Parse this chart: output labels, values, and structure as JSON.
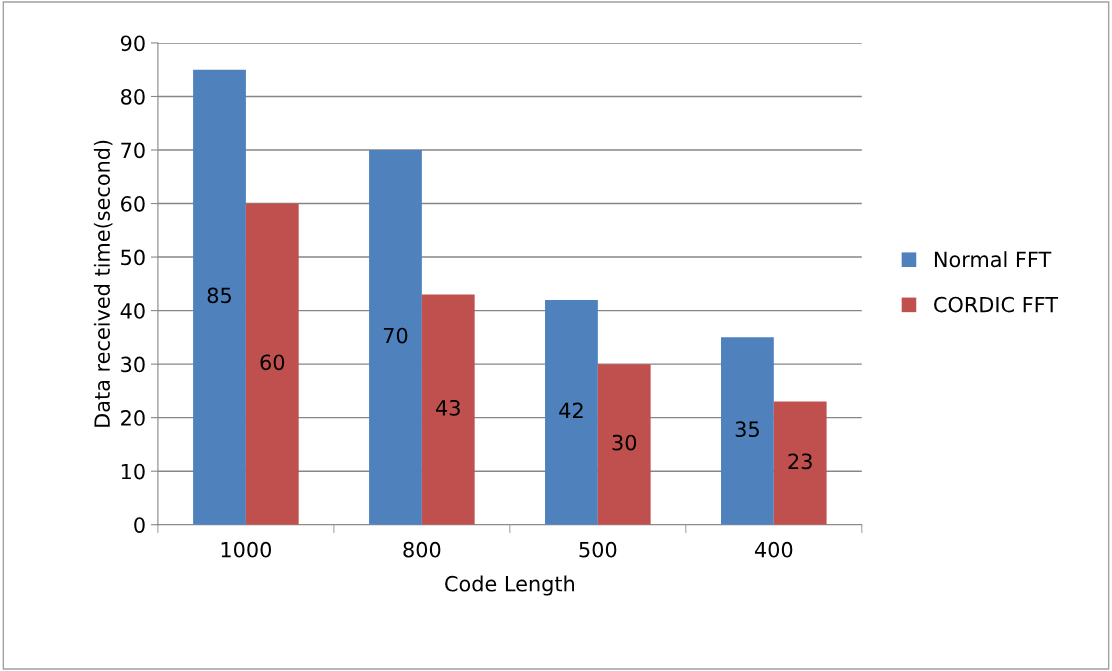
{
  "chart_data": {
    "type": "bar",
    "xlabel": "Code Length",
    "ylabel": "Data received time(second)",
    "categories": [
      "1000",
      "800",
      "500",
      "400"
    ],
    "series": [
      {
        "name": "Normal FFT",
        "color": "#4f81bd",
        "values": [
          85,
          70,
          42,
          35
        ]
      },
      {
        "name": "CORDIC FFT",
        "color": "#c0504d",
        "values": [
          60,
          43,
          30,
          23
        ]
      }
    ],
    "ylim": [
      0,
      90
    ],
    "yticks": [
      0,
      10,
      20,
      30,
      40,
      50,
      60,
      70,
      80,
      90
    ],
    "grid": "y",
    "legend": "right",
    "data_labels": true
  }
}
